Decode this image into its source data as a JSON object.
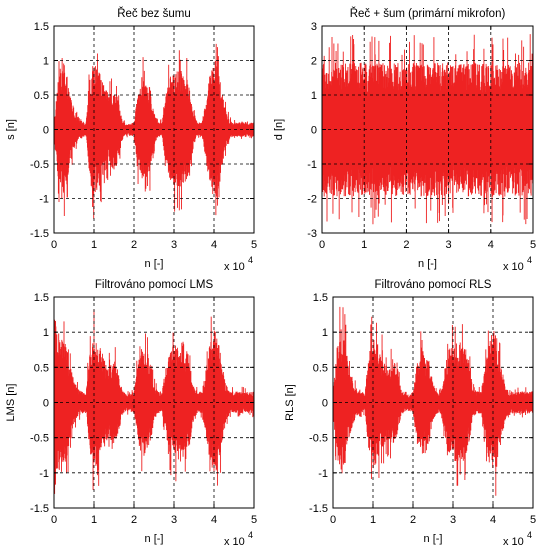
{
  "chart_data": [
    {
      "type": "line",
      "title": "Řeč bez šumu",
      "xlabel": "n [-]",
      "ylabel": "s [n]",
      "x_exponent_label": "x 10",
      "x_exponent_power": "4",
      "xlim": [
        0,
        5
      ],
      "ylim": [
        -1.5,
        1.5
      ],
      "x_ticks": [
        0,
        1,
        2,
        3,
        4,
        5
      ],
      "y_ticks": [
        -1.5,
        -1,
        -0.5,
        0,
        0.5,
        1,
        1.5
      ],
      "x_tick_labels": [
        "0",
        "1",
        "2",
        "3",
        "4",
        "5"
      ],
      "y_tick_labels": [
        "-1.5",
        "-1",
        "-0.5",
        "0",
        "0.5",
        "1",
        "1.5"
      ],
      "grid": true,
      "color": "#ee2222",
      "envelope": {
        "x": [
          0,
          0.1,
          0.2,
          0.3,
          0.4,
          0.5,
          0.6,
          0.7,
          0.8,
          0.9,
          1.0,
          1.1,
          1.2,
          1.3,
          1.4,
          1.5,
          1.6,
          1.7,
          1.8,
          1.9,
          2.0,
          2.1,
          2.2,
          2.3,
          2.4,
          2.5,
          2.6,
          2.7,
          2.8,
          2.9,
          3.0,
          3.1,
          3.2,
          3.3,
          3.4,
          3.5,
          3.6,
          3.7,
          3.8,
          3.9,
          4.0,
          4.1,
          4.2,
          4.3,
          4.4,
          4.5,
          4.6,
          4.7,
          4.8,
          4.9,
          5.0
        ],
        "amp": [
          0.12,
          0.65,
          1.0,
          0.85,
          0.5,
          0.3,
          0.15,
          0.12,
          0.08,
          0.72,
          0.95,
          0.85,
          0.7,
          0.55,
          0.5,
          0.6,
          0.45,
          0.15,
          0.08,
          0.08,
          0.1,
          0.55,
          0.75,
          0.7,
          0.6,
          0.25,
          0.1,
          0.1,
          0.5,
          0.72,
          0.8,
          0.8,
          0.85,
          0.78,
          0.55,
          0.2,
          0.08,
          0.1,
          0.45,
          0.8,
          1.0,
          0.9,
          0.55,
          0.25,
          0.12,
          0.1,
          0.1,
          0.12,
          0.1,
          0.1,
          0.1
        ]
      }
    },
    {
      "type": "line",
      "title": "Řeč + šum (primární mikrofon)",
      "xlabel": "n [-]",
      "ylabel": "d [n]",
      "x_exponent_label": "x 10",
      "x_exponent_power": "4",
      "xlim": [
        0,
        5
      ],
      "ylim": [
        -3,
        3
      ],
      "x_ticks": [
        0,
        1,
        2,
        3,
        4,
        5
      ],
      "y_ticks": [
        -3,
        -2,
        -1,
        0,
        1,
        2,
        3
      ],
      "x_tick_labels": [
        "0",
        "1",
        "2",
        "3",
        "4",
        "5"
      ],
      "y_tick_labels": [
        "-3",
        "-2",
        "-1",
        "0",
        "1",
        "2",
        "3"
      ],
      "grid": true,
      "color": "#ee2222",
      "envelope": {
        "x": [
          0,
          1,
          2,
          3,
          4,
          5
        ],
        "amp": [
          1.85,
          1.85,
          1.85,
          1.85,
          1.85,
          1.85
        ]
      }
    },
    {
      "type": "line",
      "title": "Filtrováno pomocí LMS",
      "xlabel": "n [-]",
      "ylabel": "LMS [n]",
      "x_exponent_label": "x 10",
      "x_exponent_power": "4",
      "xlim": [
        0,
        5
      ],
      "ylim": [
        -1.5,
        1.5
      ],
      "x_ticks": [
        0,
        1,
        2,
        3,
        4,
        5
      ],
      "y_ticks": [
        -1.5,
        -1,
        -0.5,
        0,
        0.5,
        1,
        1.5
      ],
      "x_tick_labels": [
        "0",
        "1",
        "2",
        "3",
        "4",
        "5"
      ],
      "y_tick_labels": [
        "-1.5",
        "-1",
        "-0.5",
        "0",
        "0.5",
        "1",
        "1.5"
      ],
      "grid": true,
      "color": "#ee2222",
      "envelope": {
        "x": [
          0,
          0.1,
          0.2,
          0.3,
          0.4,
          0.5,
          0.6,
          0.7,
          0.8,
          0.9,
          1.0,
          1.1,
          1.2,
          1.3,
          1.4,
          1.5,
          1.6,
          1.7,
          1.8,
          1.9,
          2.0,
          2.1,
          2.2,
          2.3,
          2.4,
          2.5,
          2.6,
          2.7,
          2.8,
          2.9,
          3.0,
          3.1,
          3.2,
          3.3,
          3.4,
          3.5,
          3.6,
          3.7,
          3.8,
          3.9,
          4.0,
          4.1,
          4.2,
          4.3,
          4.4,
          4.5,
          4.6,
          4.7,
          4.8,
          4.9,
          5.0
        ],
        "amp": [
          1.35,
          0.95,
          0.95,
          0.85,
          0.5,
          0.3,
          0.18,
          0.15,
          0.12,
          0.72,
          0.9,
          0.82,
          0.68,
          0.55,
          0.5,
          0.6,
          0.45,
          0.18,
          0.12,
          0.12,
          0.15,
          0.55,
          0.75,
          0.7,
          0.6,
          0.25,
          0.15,
          0.15,
          0.5,
          0.72,
          0.8,
          0.8,
          0.85,
          0.78,
          0.55,
          0.2,
          0.15,
          0.15,
          0.45,
          0.8,
          1.0,
          0.88,
          0.55,
          0.25,
          0.15,
          0.15,
          0.15,
          0.15,
          0.15,
          0.15,
          0.15
        ]
      }
    },
    {
      "type": "line",
      "title": "Filtrováno pomocí RLS",
      "xlabel": "n [-]",
      "ylabel": "RLS [n]",
      "x_exponent_label": "x 10",
      "x_exponent_power": "4",
      "xlim": [
        0,
        5
      ],
      "ylim": [
        -1.5,
        1.5
      ],
      "x_ticks": [
        0,
        1,
        2,
        3,
        4,
        5
      ],
      "y_ticks": [
        -1.5,
        -1,
        -0.5,
        0,
        0.5,
        1,
        1.5
      ],
      "x_tick_labels": [
        "0",
        "1",
        "2",
        "3",
        "4",
        "5"
      ],
      "y_tick_labels": [
        "-1.5",
        "-1",
        "-0.5",
        "0",
        "0.5",
        "1",
        "1.5"
      ],
      "grid": true,
      "color": "#ee2222",
      "envelope": {
        "x": [
          0,
          0.1,
          0.2,
          0.3,
          0.4,
          0.5,
          0.6,
          0.7,
          0.8,
          0.9,
          1.0,
          1.1,
          1.2,
          1.3,
          1.4,
          1.5,
          1.6,
          1.7,
          1.8,
          1.9,
          2.0,
          2.1,
          2.2,
          2.3,
          2.4,
          2.5,
          2.6,
          2.7,
          2.8,
          2.9,
          3.0,
          3.1,
          3.2,
          3.3,
          3.4,
          3.5,
          3.6,
          3.7,
          3.8,
          3.9,
          4.0,
          4.1,
          4.2,
          4.3,
          4.4,
          4.5,
          4.6,
          4.7,
          4.8,
          4.9,
          5.0
        ],
        "amp": [
          0.15,
          0.75,
          1.0,
          0.85,
          0.5,
          0.3,
          0.18,
          0.15,
          0.12,
          0.72,
          0.9,
          0.82,
          0.68,
          0.55,
          0.5,
          0.6,
          0.45,
          0.18,
          0.12,
          0.12,
          0.15,
          0.55,
          0.75,
          0.7,
          0.6,
          0.25,
          0.15,
          0.15,
          0.5,
          0.72,
          0.8,
          0.8,
          0.85,
          0.78,
          0.55,
          0.2,
          0.15,
          0.15,
          0.45,
          0.8,
          1.0,
          0.88,
          0.55,
          0.25,
          0.15,
          0.15,
          0.15,
          0.15,
          0.15,
          0.15,
          0.15
        ]
      }
    }
  ]
}
